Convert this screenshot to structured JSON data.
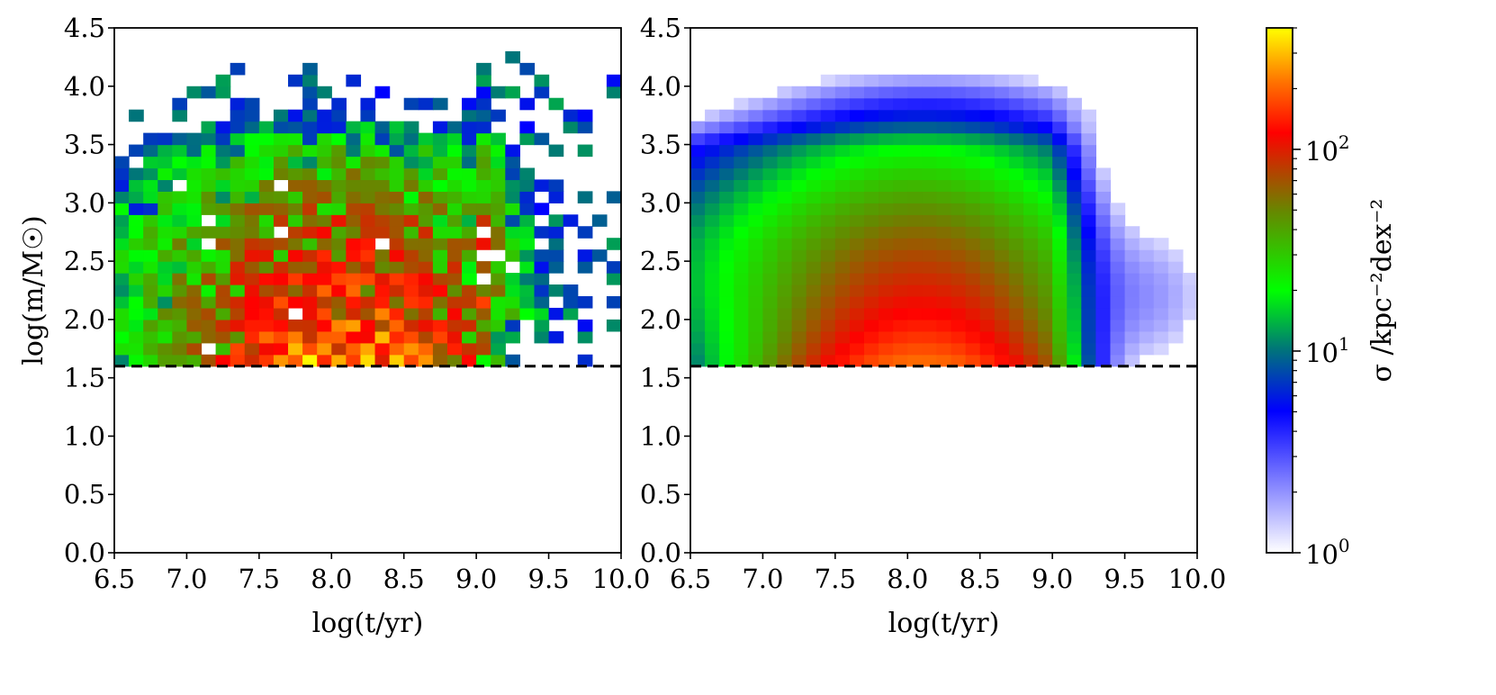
{
  "chart_data": [
    {
      "type": "heatmap",
      "panel": "left",
      "xlabel": "log(t/yr)",
      "ylabel": "log(m/M☉)",
      "xlim": [
        6.5,
        10.0
      ],
      "ylim": [
        0.0,
        4.5
      ],
      "xticks": [
        "6.5",
        "7.0",
        "7.5",
        "8.0",
        "8.5",
        "9.0",
        "9.5",
        "10.0"
      ],
      "yticks": [
        "0.0",
        "0.5",
        "1.0",
        "1.5",
        "2.0",
        "2.5",
        "3.0",
        "3.5",
        "4.0",
        "4.5"
      ],
      "bin_width_x": 0.1,
      "bin_width_y": 0.1,
      "mass_limit_line": {
        "y": 1.6,
        "style": "dashed"
      },
      "description_of_values": "sparse noisy 2D histogram of surface density; values in kpc^-2 dex^-2",
      "peak_region": {
        "x": [
          7.8,
          8.5
        ],
        "y": [
          1.6,
          2.2
        ],
        "value": 300
      },
      "min_value": 1
    },
    {
      "type": "heatmap",
      "panel": "right",
      "xlabel": "log(t/yr)",
      "ylabel": "",
      "xlim": [
        6.5,
        10.0
      ],
      "ylim": [
        0.0,
        4.5
      ],
      "xticks": [
        "6.5",
        "7.0",
        "7.5",
        "8.0",
        "8.5",
        "9.0",
        "9.5",
        "10.0"
      ],
      "yticks": [
        "0.0",
        "0.5",
        "1.0",
        "1.5",
        "2.0",
        "2.5",
        "3.0",
        "3.5",
        "4.0",
        "4.5"
      ],
      "bin_width_x": 0.1,
      "bin_width_y": 0.1,
      "mass_limit_line": {
        "y": 1.6,
        "style": "dashed"
      },
      "peak_region": {
        "x": [
          7.8,
          8.5
        ],
        "y": [
          1.6,
          2.0
        ],
        "value": 200
      },
      "min_value": 1
    },
    {
      "type": "colorbar",
      "label": "σ /kpc⁻²dex⁻²",
      "scale": "log",
      "range": [
        1,
        400
      ],
      "ticks": [
        {
          "value": 1,
          "base": "10",
          "exp": "0"
        },
        {
          "value": 10,
          "base": "10",
          "exp": "1"
        },
        {
          "value": 100,
          "base": "10",
          "exp": "2"
        }
      ],
      "colormap_stops": [
        {
          "pos": 0.0,
          "color": "#ffffff"
        },
        {
          "pos": 0.27,
          "color": "#0000ff"
        },
        {
          "pos": 0.39,
          "color": "#007777"
        },
        {
          "pos": 0.5,
          "color": "#00ff00"
        },
        {
          "pos": 0.65,
          "color": "#668800"
        },
        {
          "pos": 0.8,
          "color": "#ff0000"
        },
        {
          "pos": 0.9,
          "color": "#ff7700"
        },
        {
          "pos": 1.0,
          "color": "#ffff00"
        }
      ]
    }
  ]
}
